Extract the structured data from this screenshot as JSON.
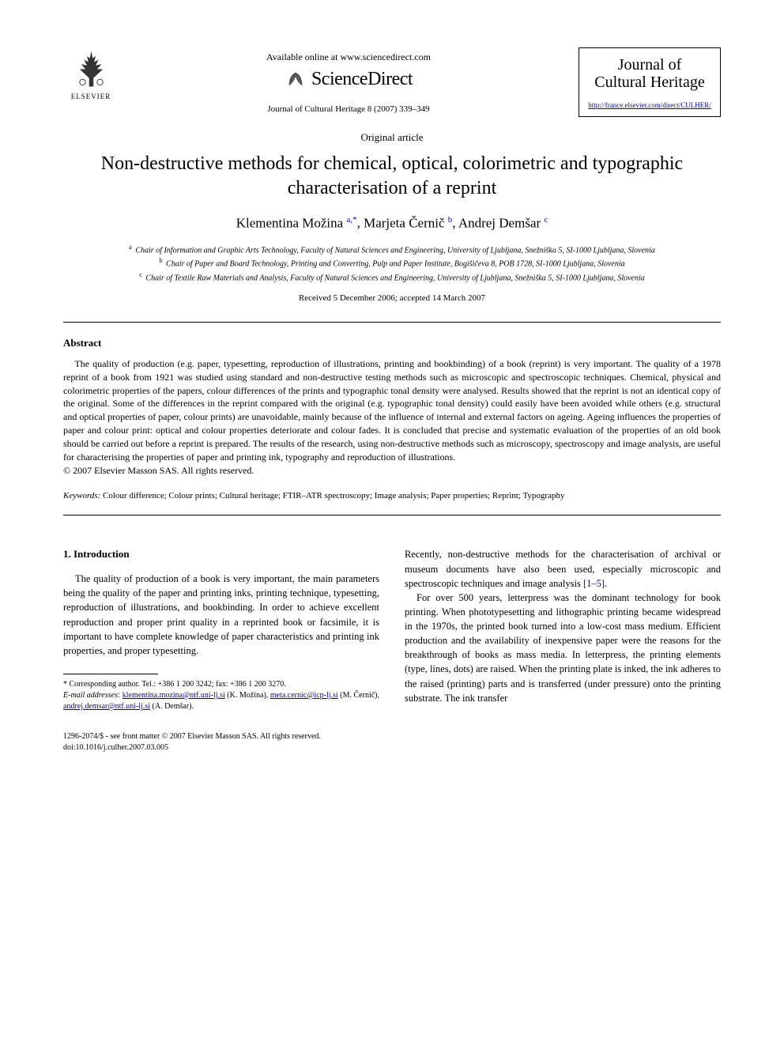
{
  "header": {
    "elsevier_label": "ELSEVIER",
    "available_online": "Available online at www.sciencedirect.com",
    "sciencedirect_label": "ScienceDirect",
    "citation": "Journal of Cultural Heritage 8 (2007) 339–349",
    "journal_name_line1": "Journal of",
    "journal_name_line2": "Cultural Heritage",
    "journal_url": "http://france.elsevier.com/direct/CULHER/"
  },
  "article": {
    "type": "Original article",
    "title": "Non-destructive methods for chemical, optical, colorimetric and typographic characterisation of a reprint",
    "authors_html": "Klementina Možina <sup>a,*</sup>, Marjeta Černič <sup>b</sup>, Andrej Demšar <sup>c</sup>",
    "affiliations": [
      {
        "sup": "a",
        "text": "Chair of Information and Graphic Arts Technology, Faculty of Natural Sciences and Engineering, University of Ljubljana, Snežniška 5, SI-1000 Ljubljana, Slovenia"
      },
      {
        "sup": "b",
        "text": "Chair of Paper and Board Technology, Printing and Converting, Pulp and Paper Institute, Bogišičeva 8, POB 1728, SI-1000 Ljubljana, Slovenia"
      },
      {
        "sup": "c",
        "text": "Chair of Textile Raw Materials and Analysis, Faculty of Natural Sciences and Engineering, University of Ljubljana, Snežniška 5, SI-1000 Ljubljana, Slovenia"
      }
    ],
    "dates": "Received 5 December 2006; accepted 14 March 2007"
  },
  "abstract": {
    "heading": "Abstract",
    "text": "The quality of production (e.g. paper, typesetting, reproduction of illustrations, printing and bookbinding) of a book (reprint) is very important. The quality of a 1978 reprint of a book from 1921 was studied using standard and non-destructive testing methods such as microscopic and spectroscopic techniques. Chemical, physical and colorimetric properties of the papers, colour differences of the prints and typographic tonal density were analysed. Results showed that the reprint is not an identical copy of the original. Some of the differences in the reprint compared with the original (e.g. typographic tonal density) could easily have been avoided while others (e.g. structural and optical properties of paper, colour prints) are unavoidable, mainly because of the influence of internal and external factors on ageing. Ageing influences the properties of paper and colour print: optical and colour properties deteriorate and colour fades. It is concluded that precise and systematic evaluation of the properties of an old book should be carried out before a reprint is prepared. The results of the research, using non-destructive methods such as microscopy, spectroscopy and image analysis, are useful for characterising the properties of paper and printing ink, typography and reproduction of illustrations.",
    "copyright": "© 2007 Elsevier Masson SAS. All rights reserved."
  },
  "keywords": {
    "label": "Keywords:",
    "text": " Colour difference; Colour prints; Cultural heritage; FTIR–ATR spectroscopy; Image analysis; Paper properties; Reprint; Typography"
  },
  "body": {
    "section_heading": "1. Introduction",
    "col1_p1": "The quality of production of a book is very important, the main parameters being the quality of the paper and printing inks, printing technique, typesetting, reproduction of illustrations, and bookbinding. In order to achieve excellent reproduction and proper print quality in a reprinted book or facsimile, it is important to have complete knowledge of paper characteristics and printing ink properties, and proper typesetting.",
    "col2_p1_pre": "Recently, non-destructive methods for the characterisation of archival or museum documents have also been used, especially microscopic and spectroscopic techniques and image analysis ",
    "col2_p1_ref": "[1–5]",
    "col2_p1_post": ".",
    "col2_p2": "For over 500 years, letterpress was the dominant technology for book printing. When phototypesetting and lithographic printing became widespread in the 1970s, the printed book turned into a low-cost mass medium. Efficient production and the availability of inexpensive paper were the reasons for the breakthrough of books as mass media. In letterpress, the printing elements (type, lines, dots) are raised. When the printing plate is inked, the ink adheres to the raised (printing) parts and is transferred (under pressure) onto the printing substrate. The ink transfer"
  },
  "footnotes": {
    "corr": "* Corresponding author. Tel.: +386 1 200 3242; fax: +386 1 200 3270.",
    "email_label": "E-mail addresses:",
    "emails": [
      {
        "addr": "klementina.mozina@ntf.uni-lj.si",
        "name": " (K. Možina), "
      },
      {
        "addr": "meta.cernic@icp-lj.si",
        "name": " (M. Černič), "
      },
      {
        "addr": "andrej.demsar@ntf.uni-lj.si",
        "name": " (A. Demšar)."
      }
    ]
  },
  "footer": {
    "line1": "1296-2074/$ - see front matter © 2007 Elsevier Masson SAS. All rights reserved.",
    "line2": "doi:10.1016/j.culher.2007.03.005"
  },
  "colors": {
    "link": "#0000cc",
    "text": "#000000",
    "bg": "#ffffff"
  }
}
